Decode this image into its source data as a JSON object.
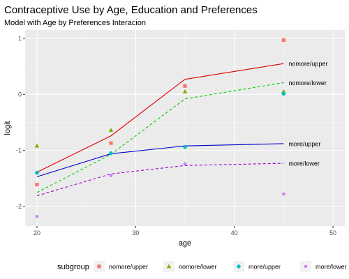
{
  "chart_data": {
    "type": "line",
    "title": "Contraceptive Use by Age, Education and Preferences",
    "subtitle": "Model with Age by Preferences Interacion",
    "xlabel": "age",
    "ylabel": "logit",
    "xlim": [
      18.8,
      51.2
    ],
    "ylim": [
      -2.35,
      1.15
    ],
    "x_ticks": [
      20,
      30,
      40,
      50
    ],
    "y_ticks": [
      -2,
      -1,
      0,
      1
    ],
    "grid": true,
    "legend": {
      "title": "subgroup",
      "position": "bottom"
    },
    "colors": {
      "nomore/upper": "#F8766D",
      "nomore/lower": "#7CAE00",
      "more/upper": "#00BFC4",
      "more/lower": "#C77CFF"
    },
    "series": [
      {
        "name": "nomore/upper",
        "points": [
          [
            20,
            -1.61
          ],
          [
            27.5,
            -0.87
          ],
          [
            35,
            0.15
          ],
          [
            45,
            0.97
          ]
        ],
        "fit": [
          [
            20,
            -1.39
          ],
          [
            27.5,
            -0.74
          ],
          [
            35,
            0.27
          ],
          [
            45,
            0.55
          ]
        ],
        "fit_color": "#E00000",
        "dashed": false,
        "point_shape": "square"
      },
      {
        "name": "nomore/lower",
        "points": [
          [
            20,
            -0.92
          ],
          [
            27.5,
            -0.64
          ],
          [
            35,
            0.05
          ],
          [
            45,
            0.05
          ]
        ],
        "fit": [
          [
            20,
            -1.75
          ],
          [
            27.5,
            -1.07
          ],
          [
            35,
            -0.08
          ],
          [
            45,
            0.21
          ]
        ],
        "fit_color": "#00CC00",
        "dashed": true,
        "point_shape": "triangle"
      },
      {
        "name": "more/upper",
        "points": [
          [
            20,
            -1.4
          ],
          [
            27.5,
            -1.05
          ],
          [
            35,
            -0.94
          ],
          [
            45,
            0.01
          ]
        ],
        "fit": [
          [
            20,
            -1.47
          ],
          [
            27.5,
            -1.06
          ],
          [
            35,
            -0.92
          ],
          [
            45,
            -0.88
          ]
        ],
        "fit_color": "#0000CC",
        "dashed": false,
        "point_shape": "diamond"
      },
      {
        "name": "more/lower",
        "points": [
          [
            20,
            -2.18
          ],
          [
            27.5,
            -1.45
          ],
          [
            35,
            -1.24
          ],
          [
            45,
            -1.78
          ]
        ],
        "fit": [
          [
            20,
            -1.81
          ],
          [
            27.5,
            -1.42
          ],
          [
            35,
            -1.27
          ],
          [
            45,
            -1.23
          ]
        ],
        "fit_color": "#9900CC",
        "dashed": true,
        "point_shape": "circle"
      }
    ],
    "annotations": [
      "nomore/upper",
      "nomore/lower",
      "more/upper",
      "more/lower"
    ]
  }
}
